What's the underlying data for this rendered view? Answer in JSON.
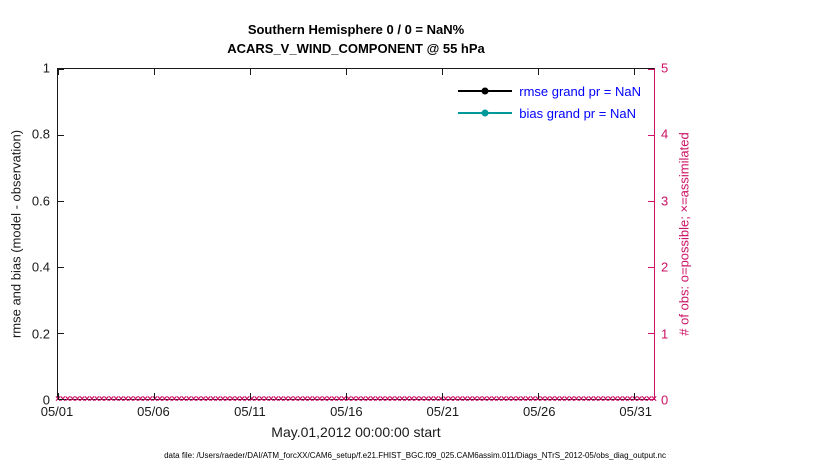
{
  "title": {
    "line1": "Southern Hemisphere 0 / 0 = NaN%",
    "line2": "ACARS_V_WIND_COMPONENT @ 55 hPa"
  },
  "axes": {
    "left": {
      "label": "rmse and bias (model - observation)",
      "ticks": [
        "0",
        "0.2",
        "0.4",
        "0.6",
        "0.8",
        "1"
      ],
      "color": "#1a1a1a"
    },
    "right": {
      "label": "# of obs: o=possible; ×=assimilated",
      "ticks": [
        "0",
        "1",
        "2",
        "3",
        "4",
        "5"
      ],
      "color": "#cc1166"
    },
    "x": {
      "ticks": [
        "05/01",
        "05/06",
        "05/11",
        "05/16",
        "05/21",
        "05/26",
        "05/31"
      ],
      "step_days": 5,
      "span_days": 31,
      "label": "May.01,2012 00:00:00 start"
    }
  },
  "legend": {
    "text_color": "#0000ff",
    "entries": [
      {
        "label": "rmse grand pr = NaN",
        "color": "#000000"
      },
      {
        "label": "bias grand pr = NaN",
        "color": "#009999"
      }
    ]
  },
  "obs_markers": {
    "symbol": "×",
    "color": "#cc1166",
    "count": 124,
    "value_on_right_axis": 0
  },
  "footer": "data file: /Users/raeder/DAI/ATM_forcXX/CAM6_setup/f.e21.FHIST_BGC.f09_025.CAM6assim.011/Diags_NTrS_2012-05/obs_diag_output.nc",
  "chart_data": {
    "type": "line",
    "title": "Southern Hemisphere 0 / 0 = NaN% — ACARS_V_WIND_COMPONENT @ 55 hPa",
    "xlabel": "May.01,2012 00:00:00 start",
    "x_ticks": [
      "05/01",
      "05/06",
      "05/11",
      "05/16",
      "05/21",
      "05/26",
      "05/31"
    ],
    "xlim": [
      "05/01",
      "06/01"
    ],
    "left_axis": {
      "ylabel": "rmse and bias (model - observation)",
      "ylim": [
        0,
        1
      ]
    },
    "right_axis": {
      "ylabel": "# of obs: o=possible; ×=assimilated",
      "ylim": [
        0,
        5
      ]
    },
    "grid": false,
    "legend_position": "top-right inside, no box",
    "series": [
      {
        "name": "rmse grand pr = NaN",
        "axis": "left",
        "type": "line",
        "color": "#000000",
        "marker": "circle",
        "values": []
      },
      {
        "name": "bias grand pr = NaN",
        "axis": "left",
        "type": "line",
        "color": "#009999",
        "marker": "circle",
        "values": []
      },
      {
        "name": "# of obs assimilated (×) and possible (o)",
        "axis": "right",
        "type": "scatter",
        "marker": "x",
        "color": "#cc1166",
        "constant_y": 0,
        "n_points": 124,
        "x_range": [
          "05/01",
          "06/01"
        ]
      }
    ]
  }
}
